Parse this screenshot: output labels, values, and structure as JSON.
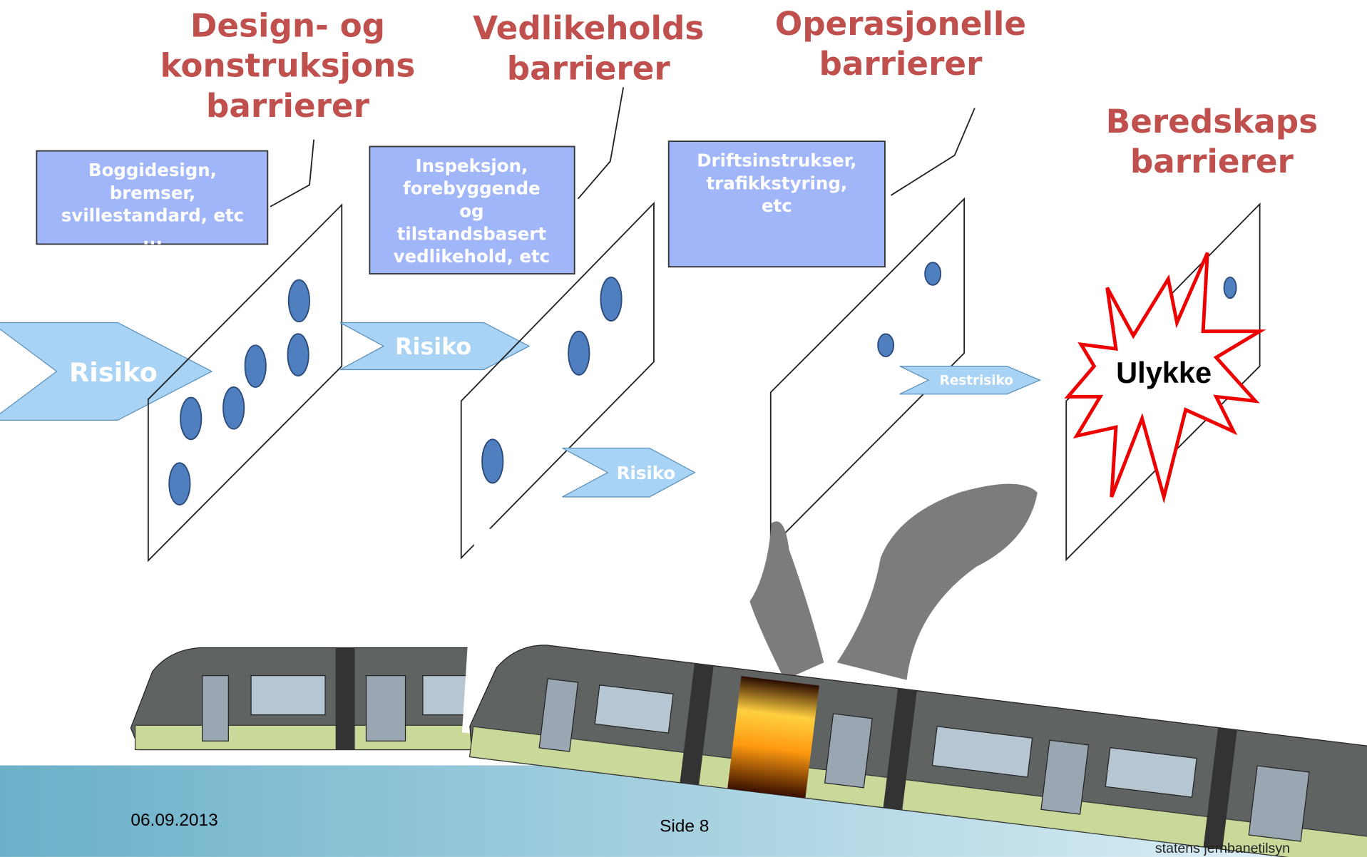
{
  "headings": [
    {
      "lines": [
        "Design- og",
        "konstruksjons",
        "barrierer"
      ]
    },
    {
      "lines": [
        "Vedlikeholds",
        "barrierer"
      ]
    },
    {
      "lines": [
        "Operasjonelle",
        "barrierer"
      ]
    },
    {
      "lines": [
        "Beredskaps",
        "barrierer"
      ]
    }
  ],
  "boxes": [
    {
      "lines": [
        "Boggidesign,",
        "bremser,",
        "svillestandard, etc",
        "..."
      ]
    },
    {
      "lines": [
        "Inspeksjon,",
        "forebyggende",
        "og",
        "tilstandsbasert",
        "vedlikehold, etc"
      ]
    },
    {
      "lines": [
        "Driftsinstrukser,",
        "trafikkstyring,",
        "etc"
      ]
    }
  ],
  "arrows": [
    "Risiko",
    "Risiko",
    "Risiko",
    "Restrisiko"
  ],
  "accident": "Ulykke",
  "footer": {
    "date": "06.09.2013",
    "page": "Side 8",
    "logo": "statens jernbanetilsyn"
  }
}
